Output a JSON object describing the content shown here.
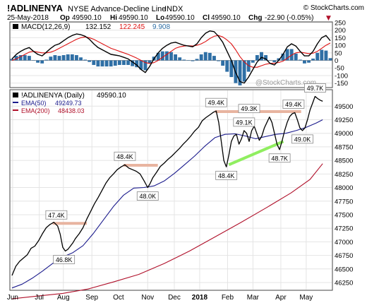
{
  "header": {
    "symbol": "!ADLINENYA",
    "name": "NYSE Advance-Decline Line",
    "exchange": "INDX",
    "brand": "© StockCharts.com",
    "date": "25-May-2018",
    "op_label": "Op",
    "op": "49590.10",
    "hi_label": "Hi",
    "hi": "49590.10",
    "lo_label": "Lo",
    "lo": "49590.10",
    "cl_label": "Cl",
    "cl": "49590.10",
    "chg_label": "Chg",
    "chg": "-22.90 (-0.05%)",
    "chg_marker": "▼"
  },
  "watermark": "@StockCharts.com",
  "colors": {
    "price": "#000000",
    "ema50": "#1a1a8c",
    "ema200": "#b0102a",
    "macd": "#000000",
    "signal": "#dd1111",
    "histogram": "#2f6fa5",
    "resistance": "#e8b4a0",
    "support": "#90ee60",
    "grid": "#e4e4e4"
  },
  "chart_data": [
    {
      "type": "line",
      "panel": "macd",
      "legend": {
        "label": "MACD(12,26,9)",
        "macd_value": "132.152",
        "signal_value": "122.245",
        "hist_value": "9.908"
      },
      "ylim": [
        -175,
        250
      ],
      "y_ticks": [
        "250",
        "200",
        "150",
        "100",
        "50",
        "0",
        "-50",
        "-100",
        "-150"
      ],
      "y_tick_values": [
        250,
        200,
        150,
        100,
        50,
        0,
        -50,
        -100,
        -150
      ],
      "series": [
        {
          "key": "macd",
          "values": [
            10,
            40,
            60,
            75,
            85,
            60,
            40,
            30,
            55,
            80,
            100,
            110,
            130,
            150,
            165,
            175,
            170,
            160,
            140,
            110,
            85,
            70,
            55,
            40,
            35,
            30,
            20,
            10,
            -10,
            -30,
            -60,
            -80,
            -40,
            10,
            50,
            80,
            100,
            115,
            120,
            110,
            100,
            95,
            90,
            110,
            150,
            180,
            195,
            190,
            160,
            120,
            60,
            0,
            -80,
            -140,
            -150,
            -110,
            -60,
            -10,
            20,
            10,
            -20,
            -30,
            0,
            40,
            90,
            110,
            95,
            60,
            30,
            30,
            60,
            110,
            150,
            165,
            130
          ]
        },
        {
          "key": "signal",
          "values": [
            0,
            10,
            25,
            40,
            55,
            60,
            55,
            50,
            50,
            55,
            65,
            80,
            95,
            110,
            125,
            140,
            150,
            155,
            150,
            140,
            125,
            110,
            95,
            80,
            70,
            60,
            50,
            40,
            28,
            15,
            0,
            -15,
            -20,
            -15,
            0,
            20,
            40,
            60,
            80,
            90,
            95,
            97,
            95,
            100,
            110,
            125,
            145,
            160,
            165,
            155,
            135,
            110,
            70,
            25,
            -10,
            -35,
            -45,
            -45,
            -35,
            -25,
            -20,
            -18,
            -14,
            -5,
            15,
            35,
            50,
            55,
            50,
            45,
            48,
            60,
            80,
            100,
            115
          ]
        },
        {
          "key": "histogram",
          "values": [
            10,
            30,
            35,
            35,
            30,
            0,
            -15,
            -20,
            5,
            25,
            35,
            30,
            35,
            40,
            40,
            35,
            20,
            5,
            -10,
            -30,
            -40,
            -40,
            -40,
            -40,
            -35,
            -30,
            -30,
            -30,
            -38,
            -45,
            -60,
            -65,
            -20,
            25,
            50,
            60,
            60,
            55,
            40,
            20,
            5,
            -2,
            -5,
            10,
            40,
            55,
            50,
            30,
            -5,
            -35,
            -75,
            -110,
            -150,
            -165,
            -140,
            -75,
            -15,
            35,
            55,
            35,
            0,
            -12,
            14,
            45,
            75,
            75,
            45,
            5,
            -20,
            -15,
            12,
            50,
            70,
            65,
            15
          ]
        }
      ]
    },
    {
      "type": "line",
      "panel": "price",
      "legend": [
        {
          "label": "!ADLINENYA (Daily)",
          "value": "49590.10"
        },
        {
          "label": "EMA(50)",
          "value": "49249.73"
        },
        {
          "label": "EMA(200)",
          "value": "48438.03"
        }
      ],
      "ylim": [
        46120,
        49790
      ],
      "y_ticks": [
        "49500",
        "49250",
        "49000",
        "48750",
        "48500",
        "48250",
        "48000",
        "47750",
        "47500",
        "47250",
        "47000",
        "46750",
        "46500",
        "46250"
      ],
      "y_tick_values": [
        49500,
        49250,
        49000,
        48750,
        48500,
        48250,
        48000,
        47750,
        47500,
        47250,
        47000,
        46750,
        46500,
        46250
      ],
      "x_ticks": [
        "Jun",
        "Jul",
        "Aug",
        "Sep",
        "Oct",
        "Nov",
        "Dec",
        "2018",
        "Feb",
        "Mar",
        "Apr",
        "May"
      ],
      "x_tick_pos": [
        0.5,
        21.5,
        40.5,
        63,
        84,
        107,
        128,
        148,
        170,
        190,
        212,
        232
      ],
      "x_count": 252,
      "series": [
        {
          "key": "price",
          "points": [
            [
              0,
              46380
            ],
            [
              3,
              46550
            ],
            [
              6,
              46640
            ],
            [
              9,
              46700
            ],
            [
              12,
              46760
            ],
            [
              15,
              46880
            ],
            [
              18,
              46920
            ],
            [
              21,
              47020
            ],
            [
              24,
              47150
            ],
            [
              27,
              47260
            ],
            [
              30,
              47320
            ],
            [
              33,
              47360
            ],
            [
              36,
              47290
            ],
            [
              38,
              47140
            ],
            [
              40,
              46900
            ],
            [
              42,
              46830
            ],
            [
              44,
              46860
            ],
            [
              46,
              46920
            ],
            [
              48,
              46980
            ],
            [
              50,
              47060
            ],
            [
              53,
              47150
            ],
            [
              56,
              47260
            ],
            [
              59,
              47420
            ],
            [
              62,
              47560
            ],
            [
              65,
              47700
            ],
            [
              68,
              47820
            ],
            [
              71,
              47950
            ],
            [
              74,
              48080
            ],
            [
              77,
              48180
            ],
            [
              80,
              48250
            ],
            [
              83,
              48330
            ],
            [
              86,
              48380
            ],
            [
              89,
              48420
            ],
            [
              92,
              48360
            ],
            [
              95,
              48330
            ],
            [
              98,
              48300
            ],
            [
              101,
              48250
            ],
            [
              104,
              48130
            ],
            [
              107,
              48000
            ],
            [
              109,
              48080
            ],
            [
              111,
              48180
            ],
            [
              114,
              48280
            ],
            [
              117,
              48390
            ],
            [
              120,
              48450
            ],
            [
              123,
              48520
            ],
            [
              126,
              48580
            ],
            [
              129,
              48650
            ],
            [
              132,
              48720
            ],
            [
              135,
              48800
            ],
            [
              138,
              48870
            ],
            [
              141,
              48950
            ],
            [
              144,
              49040
            ],
            [
              147,
              49110
            ],
            [
              150,
              49230
            ],
            [
              153,
              49290
            ],
            [
              156,
              49340
            ],
            [
              159,
              49390
            ],
            [
              161,
              49410
            ],
            [
              163,
              49200
            ],
            [
              165,
              48850
            ],
            [
              167,
              48500
            ],
            [
              169,
              48380
            ],
            [
              171,
              48600
            ],
            [
              173,
              48850
            ],
            [
              175,
              48950
            ],
            [
              177,
              48980
            ],
            [
              179,
              48800
            ],
            [
              181,
              48900
            ],
            [
              183,
              49050
            ],
            [
              185,
              49000
            ],
            [
              187,
              48850
            ],
            [
              189,
              49050
            ],
            [
              191,
              49130
            ],
            [
              193,
              49000
            ],
            [
              195,
              48870
            ],
            [
              197,
              48950
            ],
            [
              199,
              49100
            ],
            [
              201,
              49200
            ],
            [
              203,
              49300
            ],
            [
              205,
              49200
            ],
            [
              207,
              49000
            ],
            [
              209,
              48800
            ],
            [
              211,
              48700
            ],
            [
              213,
              48860
            ],
            [
              215,
              49050
            ],
            [
              217,
              49200
            ],
            [
              219,
              49310
            ],
            [
              221,
              49360
            ],
            [
              223,
              49380
            ],
            [
              225,
              49250
            ],
            [
              227,
              49100
            ],
            [
              229,
              49050
            ],
            [
              231,
              49100
            ],
            [
              233,
              49250
            ],
            [
              235,
              49430
            ],
            [
              237,
              49550
            ],
            [
              239,
              49680
            ],
            [
              241,
              49640
            ],
            [
              243,
              49610
            ],
            [
              245,
              49590
            ]
          ]
        },
        {
          "key": "ema50",
          "points": [
            [
              0,
              46150
            ],
            [
              8,
              46220
            ],
            [
              16,
              46330
            ],
            [
              24,
              46460
            ],
            [
              32,
              46600
            ],
            [
              40,
              46720
            ],
            [
              48,
              46800
            ],
            [
              56,
              46930
            ],
            [
              64,
              47150
            ],
            [
              72,
              47400
            ],
            [
              80,
              47650
            ],
            [
              88,
              47860
            ],
            [
              96,
              47990
            ],
            [
              104,
              48000
            ],
            [
              112,
              48030
            ],
            [
              120,
              48120
            ],
            [
              128,
              48260
            ],
            [
              136,
              48420
            ],
            [
              144,
              48580
            ],
            [
              152,
              48760
            ],
            [
              160,
              48920
            ],
            [
              168,
              48980
            ],
            [
              176,
              48990
            ],
            [
              184,
              48950
            ],
            [
              192,
              48900
            ],
            [
              200,
              48940
            ],
            [
              208,
              48980
            ],
            [
              216,
              49000
            ],
            [
              224,
              49050
            ],
            [
              232,
              49110
            ],
            [
              240,
              49190
            ],
            [
              245,
              49250
            ]
          ]
        },
        {
          "key": "ema200",
          "points": [
            [
              0,
              45950
            ],
            [
              20,
              46000
            ],
            [
              40,
              46050
            ],
            [
              60,
              46130
            ],
            [
              80,
              46260
            ],
            [
              100,
              46400
            ],
            [
              120,
              46600
            ],
            [
              140,
              46830
            ],
            [
              160,
              47090
            ],
            [
              180,
              47350
            ],
            [
              200,
              47620
            ],
            [
              220,
              47900
            ],
            [
              235,
              48150
            ],
            [
              245,
              48440
            ]
          ]
        }
      ],
      "annotations": [
        {
          "label": "47.4K",
          "x": 35,
          "y": 47340,
          "position": "above",
          "type": "resistance"
        },
        {
          "label": "46.8K",
          "x": 41,
          "y": 46830,
          "position": "below",
          "type": "low"
        },
        {
          "label": "48.4K",
          "x": 89,
          "y": 48420,
          "position": "above",
          "type": "resistance"
        },
        {
          "label": "48.0K",
          "x": 107,
          "y": 48000,
          "position": "below",
          "type": "low"
        },
        {
          "label": "49.4K",
          "x": 161,
          "y": 49410,
          "position": "above",
          "type": "peak"
        },
        {
          "label": "49.3K",
          "x": 187,
          "y": 49300,
          "position": "above",
          "type": "peak"
        },
        {
          "label": "49.1K",
          "x": 183,
          "y": 49050,
          "position": "above",
          "type": "peak"
        },
        {
          "label": "49.4K",
          "x": 222,
          "y": 49380,
          "position": "above",
          "type": "peak"
        },
        {
          "label": "48.4K",
          "x": 169,
          "y": 48380,
          "position": "below",
          "type": "low"
        },
        {
          "label": "48.7K",
          "x": 211,
          "y": 48700,
          "position": "below",
          "type": "low"
        },
        {
          "label": "49.0K",
          "x": 229,
          "y": 49050,
          "position": "below",
          "type": "low"
        },
        {
          "label": "49.7K",
          "x": 239,
          "y": 49680,
          "position": "above",
          "type": "peak"
        }
      ],
      "resistance_lines": [
        {
          "x1": 32,
          "x2": 59,
          "y": 47340
        },
        {
          "x1": 88,
          "x2": 115,
          "y": 48410
        },
        {
          "x1": 160,
          "x2": 228,
          "y": 49400
        }
      ],
      "support_lines": [
        {
          "x1": 171,
          "x2": 214,
          "y1": 48420,
          "y2": 48850
        }
      ]
    }
  ]
}
